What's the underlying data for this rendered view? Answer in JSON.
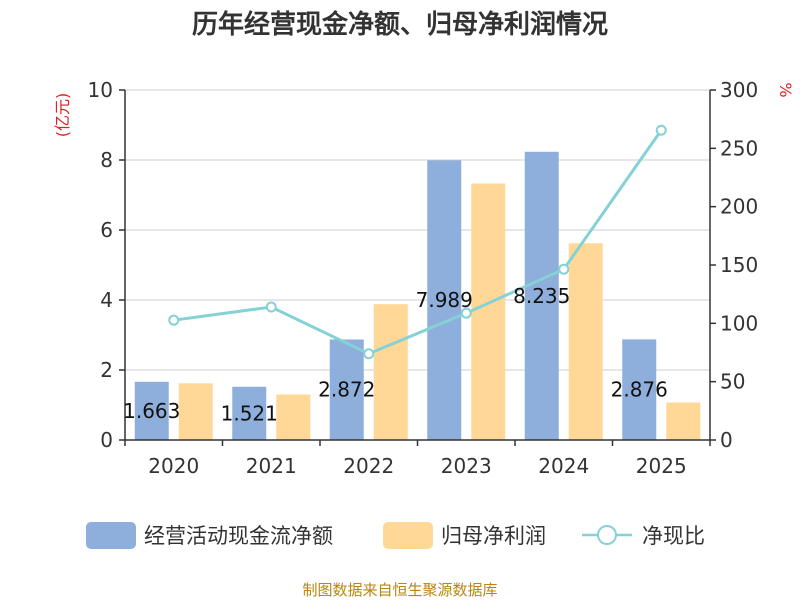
{
  "chart_data": {
    "type": "bar+line",
    "title": "历年经营现金净额、归母净利润情况",
    "categories": [
      "2020",
      "2021",
      "2022",
      "2023",
      "2024",
      "2025"
    ],
    "series": [
      {
        "name": "经营活动现金流净额",
        "type": "bar",
        "axis": "left",
        "color": "#8eaedb",
        "values": [
          1.663,
          1.521,
          2.872,
          7.989,
          8.235,
          2.876
        ]
      },
      {
        "name": "归母净利润",
        "type": "bar",
        "axis": "left",
        "color": "#ffd898",
        "values": [
          1.62,
          1.3,
          3.88,
          7.33,
          5.62,
          1.07
        ]
      },
      {
        "name": "净现比",
        "type": "line",
        "axis": "right",
        "color": "#85d1d6",
        "values": [
          102.7,
          114.0,
          73.9,
          108.7,
          146.4,
          265.5
        ]
      }
    ],
    "data_labels": [
      "1.663",
      "1.521",
      "2.872",
      "7.989",
      "8.235",
      "2.876"
    ],
    "y_left": {
      "label": "(亿元)",
      "min": 0,
      "max": 10,
      "ticks": [
        0,
        2,
        4,
        6,
        8,
        10
      ]
    },
    "y_right": {
      "label": "%",
      "min": 0,
      "max": 300,
      "ticks": [
        0,
        50,
        100,
        150,
        200,
        250,
        300
      ]
    },
    "grid": true,
    "legend_position": "bottom"
  },
  "source": "制图数据来自恒生聚源数据库"
}
